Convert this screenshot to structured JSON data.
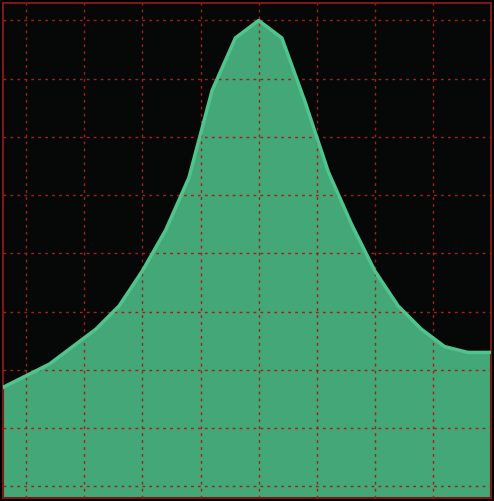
{
  "chart_data": {
    "type": "area",
    "x": [
      -0.4,
      0.0,
      0.4,
      0.8,
      1.2,
      1.6,
      2.0,
      2.4,
      2.8,
      3.2,
      3.6,
      4.0,
      4.4,
      4.8,
      5.2,
      5.6,
      6.0,
      6.4,
      6.8,
      7.2,
      7.6,
      8.0
    ],
    "values": [
      1.7,
      1.9,
      2.1,
      2.4,
      2.7,
      3.1,
      3.7,
      4.4,
      5.3,
      6.8,
      7.7,
      8.0,
      7.7,
      6.6,
      5.4,
      4.5,
      3.7,
      3.1,
      2.7,
      2.4,
      2.3,
      2.3
    ],
    "color": "#4fc48c",
    "xlim": [
      -0.4,
      8.0
    ],
    "ylim": [
      -0.2,
      8.3
    ],
    "xticks": [
      0,
      1,
      2,
      3,
      4,
      5,
      6,
      7
    ],
    "yticks": [
      0,
      1,
      2,
      3,
      4,
      5,
      6,
      7,
      8
    ],
    "grid": true,
    "tick_labels": false
  }
}
